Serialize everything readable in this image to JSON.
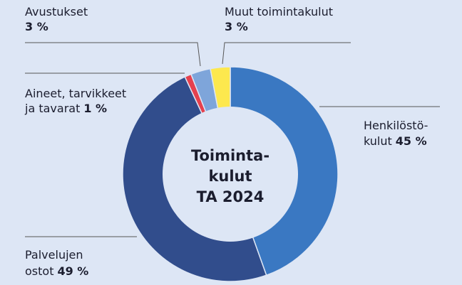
{
  "chart_data": {
    "type": "pie",
    "donut": true,
    "title_lines": [
      "Toiminta-",
      "kulut",
      "TA 2024"
    ],
    "categories": [
      [
        "Henkilöstö-",
        "kulut"
      ],
      [
        "Palvelujen",
        "ostot"
      ],
      [
        "Aineet, tarvikkeet",
        "ja tavarat"
      ],
      [
        "Avustukset"
      ],
      [
        "Muut toimintakulut"
      ]
    ],
    "values": [
      45,
      49,
      1,
      3,
      3
    ],
    "value_labels": [
      "45 %",
      "49 %",
      "1 %",
      "3 %",
      "3 %"
    ],
    "colors": [
      "#3a78c2",
      "#314d8c",
      "#e5414e",
      "#7ea5da",
      "#fde84e"
    ]
  }
}
